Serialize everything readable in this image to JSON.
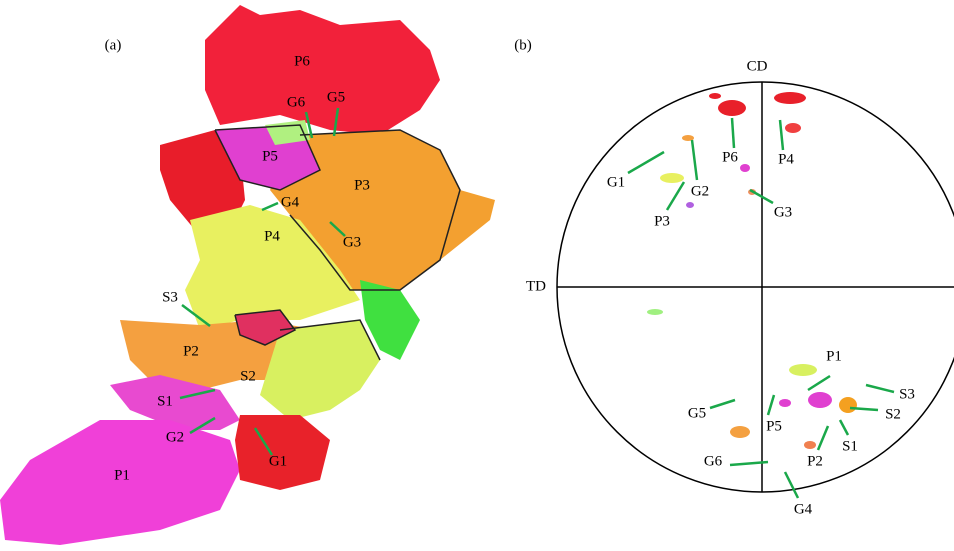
{
  "panel_a": {
    "label": "(a)",
    "regions": [
      "P6",
      "G6",
      "G5",
      "P5",
      "P3",
      "G4",
      "P4",
      "G3",
      "S3",
      "P2",
      "S2",
      "S1",
      "G2",
      "G1",
      "P1"
    ]
  },
  "panel_b": {
    "label": "(b)",
    "axis_top": "CD",
    "axis_left": "TD",
    "labels": [
      "G1",
      "G2",
      "P3",
      "P6",
      "P4",
      "G3",
      "P1",
      "S3",
      "S2",
      "S1",
      "P5",
      "G5",
      "G6",
      "P2",
      "G4"
    ]
  }
}
